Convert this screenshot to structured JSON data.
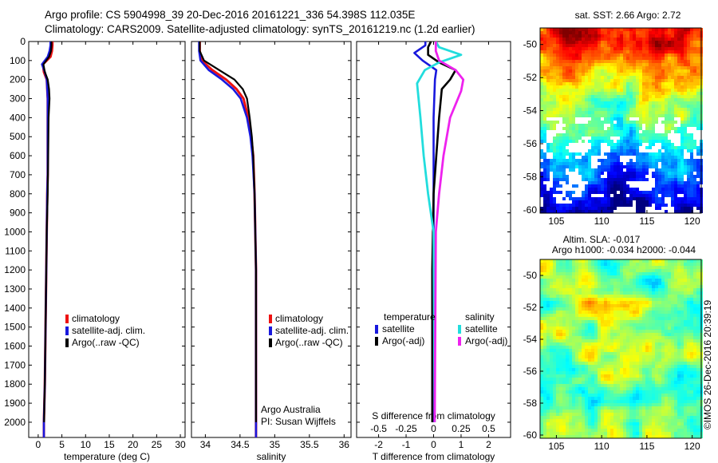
{
  "header": {
    "line1": "Argo profile: CS 5904998_39 20-Dec-2016 20161221_336 54.398S 112.035E",
    "line2": "Climatology: CARS2009. Satellite-adjusted climatology: synTS_20161219.nc (1.2d earlier)"
  },
  "colors": {
    "climatology": "#ee1111",
    "satellite_adj": "#1818dd",
    "argo": "#000000",
    "sal_satellite": "#22dddd",
    "sal_argo": "#ee22ee"
  },
  "legend": {
    "items": [
      "climatology",
      "satellite-adj. clim.",
      "Argo(..raw -QC)"
    ]
  },
  "diff_legend": {
    "temp_title": "temperature",
    "sal_title": "salinity",
    "temp_items": [
      "satellite",
      "Argo(-adj)"
    ],
    "sal_items": [
      "satellite",
      "Argo(-adj)"
    ]
  },
  "footer_note": {
    "line1": "Argo Australia",
    "line2": "PI: Susan Wijffels"
  },
  "map_sst": {
    "title": "sat. SST: 2.66 Argo: 2.72",
    "yticks": [
      "-50",
      "-52",
      "-54",
      "-56",
      "-58",
      "-60"
    ],
    "xticks": [
      "105",
      "110",
      "115",
      "120"
    ]
  },
  "map_sla": {
    "title1": "Altim. SLA: -0.017",
    "title2": "Argo h1000: -0.034 h2000: -0.044",
    "yticks": [
      "-50",
      "-52",
      "-54",
      "-56",
      "-58",
      "-60"
    ],
    "xticks": [
      "105",
      "110",
      "115",
      "120"
    ]
  },
  "credit": "©IMOS 26-Dec-2016 20:39:19",
  "chart_data": [
    {
      "type": "line",
      "xlabel": "temperature (deg C)",
      "ylabel": "",
      "xlim": [
        -2,
        31
      ],
      "ylim": [
        2080,
        0
      ],
      "xticks": [
        0,
        5,
        10,
        15,
        20,
        25,
        30
      ],
      "yticks": [
        0,
        100,
        200,
        300,
        400,
        500,
        600,
        700,
        800,
        900,
        1000,
        1100,
        1200,
        1300,
        1400,
        1500,
        1600,
        1700,
        1800,
        1900,
        2000
      ],
      "series": [
        {
          "name": "climatology",
          "x": [
            3.0,
            3.0,
            2.9,
            2.6,
            1.0,
            1.2,
            1.8,
            2.0,
            2.0,
            2.0,
            2.0,
            1.9,
            1.8,
            1.7,
            1.6,
            1.5,
            1.4,
            1.3,
            1.2,
            1.2
          ],
          "y": [
            0,
            20,
            50,
            80,
            120,
            160,
            200,
            300,
            400,
            500,
            700,
            800,
            1000,
            1200,
            1400,
            1600,
            1800,
            1900,
            2000,
            2080
          ]
        },
        {
          "name": "satellite-adj. clim.",
          "x": [
            2.6,
            2.6,
            2.4,
            2.0,
            0.8,
            1.4,
            1.8,
            2.0,
            2.0,
            2.0,
            2.0,
            1.9,
            1.8,
            1.7,
            1.6,
            1.5,
            1.4,
            1.3,
            1.2,
            1.2
          ],
          "y": [
            0,
            20,
            50,
            80,
            120,
            160,
            200,
            300,
            400,
            500,
            700,
            800,
            1000,
            1200,
            1400,
            1600,
            1800,
            1900,
            2000,
            2080
          ]
        },
        {
          "name": "Argo(..raw -QC)",
          "x": [
            2.8,
            2.8,
            2.7,
            2.3,
            1.1,
            1.4,
            2.0,
            2.3,
            2.4,
            2.2,
            2.1,
            2.0,
            1.8,
            1.7,
            1.6,
            1.5,
            1.4,
            1.3,
            1.25
          ],
          "y": [
            0,
            20,
            50,
            80,
            120,
            160,
            200,
            250,
            300,
            400,
            600,
            800,
            1000,
            1200,
            1400,
            1600,
            1800,
            1900,
            2000
          ]
        }
      ]
    },
    {
      "type": "line",
      "xlabel": "salinity",
      "ylabel": "",
      "xlim": [
        33.8,
        36.1
      ],
      "ylim": [
        2080,
        0
      ],
      "xticks": [
        34,
        34.5,
        35,
        35.5,
        36
      ],
      "xticklabels": [
        "34",
        "34.5",
        "35",
        "35.5",
        "36"
      ],
      "series": [
        {
          "name": "climatology",
          "x": [
            33.92,
            33.92,
            33.95,
            34.1,
            34.3,
            34.45,
            34.55,
            34.62,
            34.66,
            34.69,
            34.71,
            34.72,
            34.73,
            34.73,
            34.73,
            34.73,
            34.73
          ],
          "y": [
            0,
            50,
            100,
            150,
            200,
            250,
            300,
            400,
            500,
            600,
            800,
            1000,
            1200,
            1400,
            1600,
            1800,
            2080
          ]
        },
        {
          "name": "satellite-adj. clim.",
          "x": [
            33.91,
            33.91,
            33.93,
            34.05,
            34.24,
            34.4,
            34.51,
            34.6,
            34.65,
            34.68,
            34.71,
            34.72,
            34.73,
            34.73,
            34.73,
            34.73,
            34.73
          ],
          "y": [
            0,
            50,
            100,
            150,
            200,
            250,
            300,
            400,
            500,
            600,
            800,
            1000,
            1200,
            1400,
            1600,
            1800,
            2080
          ]
        },
        {
          "name": "Argo(..raw -QC)",
          "x": [
            33.92,
            33.92,
            33.98,
            34.2,
            34.42,
            34.54,
            34.6,
            34.64,
            34.67,
            34.69,
            34.71,
            34.72,
            34.73,
            34.73,
            34.73,
            34.73,
            34.73
          ],
          "y": [
            0,
            50,
            100,
            150,
            200,
            250,
            300,
            400,
            500,
            600,
            800,
            1000,
            1200,
            1400,
            1600,
            1800,
            2000
          ]
        }
      ]
    },
    {
      "type": "line",
      "title": "S difference from climatology",
      "xlabel": "T difference from climatology",
      "xlim": [
        -2.8,
        2.8
      ],
      "ylim": [
        2080,
        0
      ],
      "xticks": [
        -2,
        -1,
        0,
        1,
        2
      ],
      "sticks": [
        -0.5,
        -0.25,
        0,
        0.25,
        0.5
      ],
      "series": [
        {
          "name": "temperature satellite",
          "x": [
            -0.3,
            -0.3,
            -0.7,
            -0.4,
            0.1,
            0.05,
            0.0,
            0.0,
            0.0,
            0.0,
            0.0
          ],
          "y": [
            0,
            20,
            60,
            100,
            150,
            200,
            400,
            800,
            1200,
            1600,
            2000
          ]
        },
        {
          "name": "temperature Argo(-adj)",
          "x": [
            -0.1,
            -0.2,
            -0.2,
            0.2,
            0.8,
            0.6,
            0.3,
            0.2,
            0.1,
            0.0,
            -0.05,
            -0.05,
            -0.05
          ],
          "y": [
            0,
            30,
            70,
            110,
            150,
            200,
            250,
            400,
            600,
            800,
            1200,
            1600,
            2000
          ]
        },
        {
          "name": "salinity satellite",
          "x": [
            0.02,
            0.05,
            0.25,
            0.05,
            -0.08,
            -0.15,
            -0.12,
            -0.09,
            -0.05,
            0.0,
            0.01
          ],
          "y": [
            0,
            30,
            70,
            110,
            150,
            220,
            400,
            600,
            800,
            1000,
            2000
          ]
        },
        {
          "name": "salinity Argo(-adj)",
          "x": [
            0.02,
            0.02,
            0.05,
            0.2,
            0.27,
            0.25,
            0.15,
            0.09,
            0.05,
            0.02,
            0.01
          ],
          "y": [
            0,
            50,
            100,
            150,
            200,
            260,
            400,
            600,
            800,
            1000,
            2000
          ]
        }
      ]
    }
  ]
}
